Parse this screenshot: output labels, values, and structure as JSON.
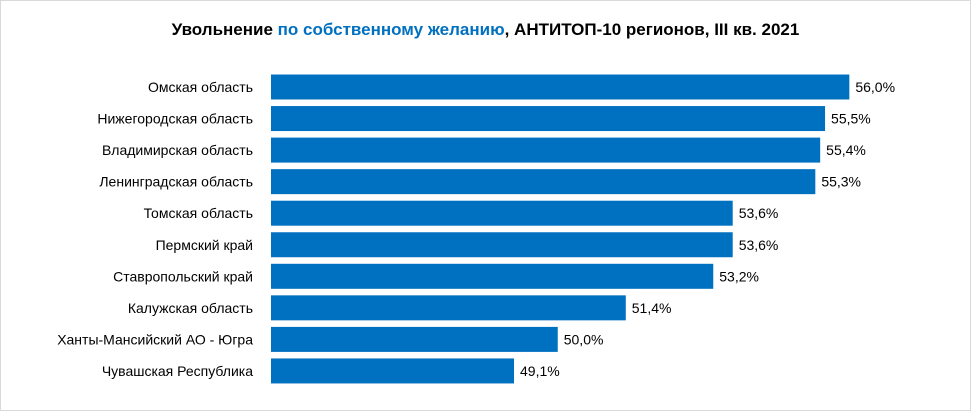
{
  "chart_data": {
    "type": "bar",
    "orientation": "horizontal",
    "title_parts": [
      "Увольнение ",
      "по собственному желанию",
      ", АНТИТОП-10 регионов, III кв. 2021"
    ],
    "categories": [
      "Омская область",
      "Нижегородская область",
      "Владимирская область",
      "Ленинградская область",
      "Томская область",
      "Пермский край",
      "Ставропольский край",
      "Калужская область",
      "Ханты-Мансийский АО - Югра",
      "Чувашская Республика"
    ],
    "values": [
      56.0,
      55.5,
      55.4,
      55.3,
      53.6,
      53.6,
      53.2,
      51.4,
      50.0,
      49.1
    ],
    "labels": [
      "56,0%",
      "55,5%",
      "55,4%",
      "55,3%",
      "53,6%",
      "53,6%",
      "53,2%",
      "51,4%",
      "50,0%",
      "49,1%"
    ],
    "unit": "%",
    "xlim": [
      44.1,
      57
    ],
    "xlabel": "",
    "ylabel": "",
    "grid": false,
    "colors": {
      "bar": "#0070c0",
      "title_highlight": "#0070c0"
    }
  }
}
